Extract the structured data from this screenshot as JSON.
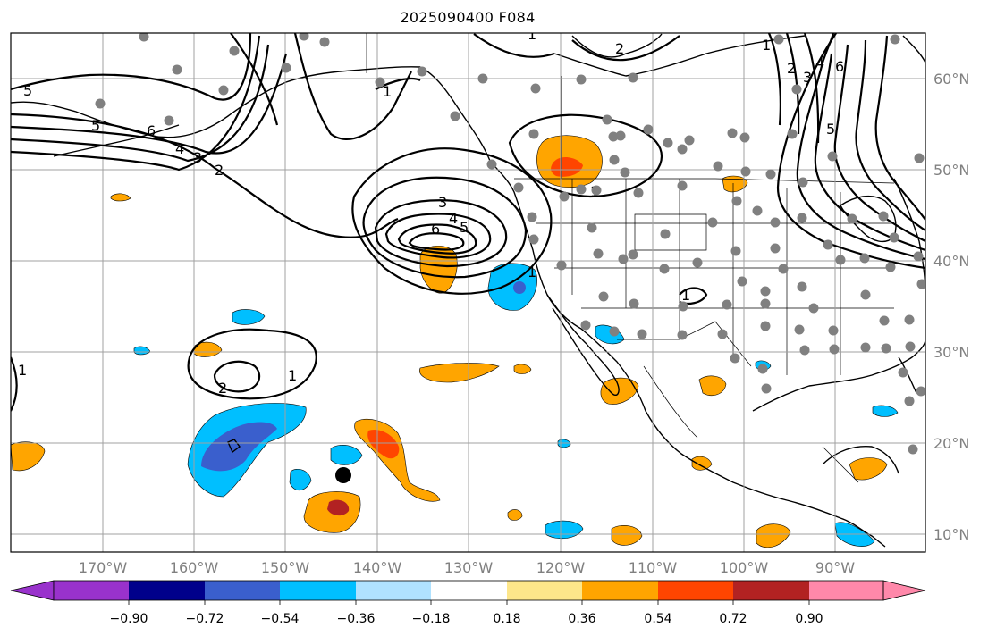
{
  "title": "2025090400 F084",
  "map": {
    "lon_ticks": [
      "170°W",
      "160°W",
      "150°W",
      "140°W",
      "130°W",
      "120°W",
      "110°W",
      "100°W",
      "90°W"
    ],
    "lat_ticks": [
      "60°N",
      "50°N",
      "40°N",
      "30°N",
      "20°N",
      "10°N"
    ],
    "contour_labels": [
      "5",
      "5",
      "6",
      "4",
      "3",
      "2",
      "1",
      "3",
      "4",
      "5",
      "6",
      "2",
      "1",
      "1",
      "1",
      "2",
      "3",
      "4",
      "5",
      "6",
      "1",
      "1",
      "2",
      "1",
      "1"
    ],
    "colors": {
      "coast": "#000000",
      "contour": "#000000",
      "grid": "#a0a0a0",
      "station": "#808080",
      "marker": "#000000"
    }
  },
  "colorbar": {
    "labels": [
      "−0.90",
      "−0.72",
      "−0.54",
      "−0.36",
      "−0.18",
      "0.18",
      "0.36",
      "0.54",
      "0.72",
      "0.90"
    ],
    "colors": [
      "#9932cc",
      "#00008b",
      "#3a5fcd",
      "#00bfff",
      "#b0e2ff",
      "#ffffff",
      "#fde68a",
      "#ffa500",
      "#ff4500",
      "#b22222",
      "#ff88aa"
    ]
  }
}
